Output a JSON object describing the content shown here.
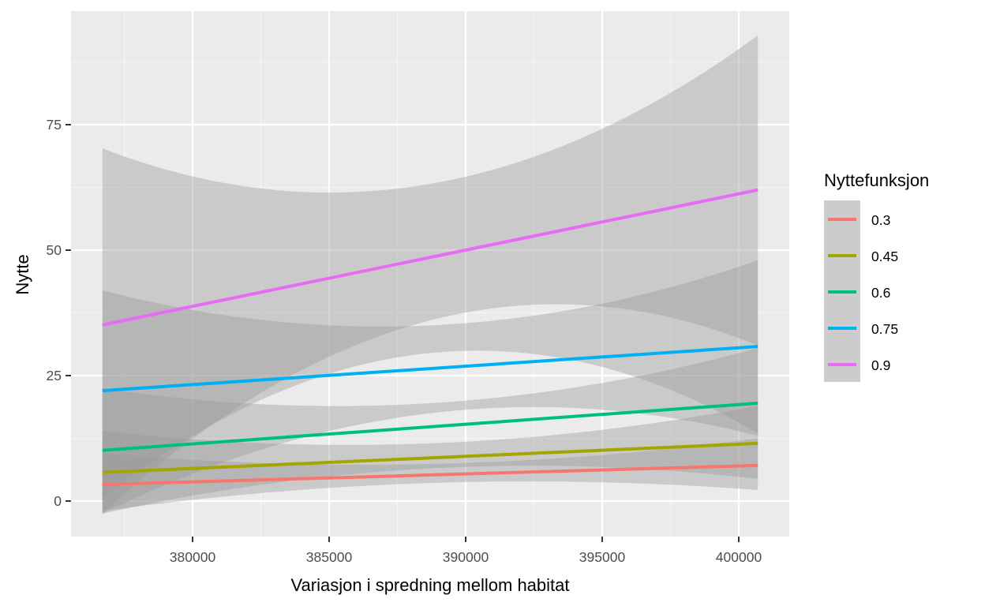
{
  "chart_data": {
    "type": "line",
    "title": "",
    "xlabel": "Variasjon i spredning mellom habitat",
    "ylabel": "Nytte",
    "xlim": [
      376000,
      401200
    ],
    "ylim": [
      -6.5,
      97.5
    ],
    "x_ticks": [
      380000,
      385000,
      390000,
      395000,
      400000
    ],
    "x_tick_labels": [
      "380000",
      "385000",
      "390000",
      "395000",
      "400000"
    ],
    "y_ticks": [
      0,
      25,
      50,
      75
    ],
    "y_tick_labels": [
      "0",
      "25",
      "50",
      "75"
    ],
    "grid": true,
    "legend": {
      "title": "Nyttefunksjon",
      "position": "right"
    },
    "x_range": [
      376700,
      400700
    ],
    "series": [
      {
        "name": "0.3",
        "color": "#F8766D",
        "line": [
          3.3,
          7.1
        ],
        "ribbon_lower": [
          -2.0,
          3.6,
          2.2
        ],
        "ribbon_upper": [
          9.5,
          7.4,
          12.5
        ]
      },
      {
        "name": "0.45",
        "color": "#A3A500",
        "line": [
          5.7,
          11.5
        ],
        "ribbon_lower": [
          -2.5,
          6.5,
          4.4
        ],
        "ribbon_upper": [
          14.0,
          11.5,
          19.0
        ]
      },
      {
        "name": "0.6",
        "color": "#00BF7D",
        "line": [
          10.1,
          19.5
        ],
        "ribbon_lower": [
          -2.5,
          17.5,
          13.0
        ],
        "ribbon_upper": [
          22.5,
          19.5,
          30.5
        ]
      },
      {
        "name": "0.75",
        "color": "#00B0F6",
        "line": [
          22.0,
          30.8
        ],
        "ribbon_lower": [
          0.5,
          29.5,
          13.5
        ],
        "ribbon_upper": [
          42.0,
          35.0,
          48.0
        ]
      },
      {
        "name": "0.9",
        "color": "#E76BF3",
        "line": [
          35.1,
          62.0
        ],
        "ribbon_lower": [
          -2.5,
          36.0,
          31.0
        ],
        "ribbon_upper": [
          70.3,
          63.2,
          92.8
        ]
      }
    ]
  }
}
